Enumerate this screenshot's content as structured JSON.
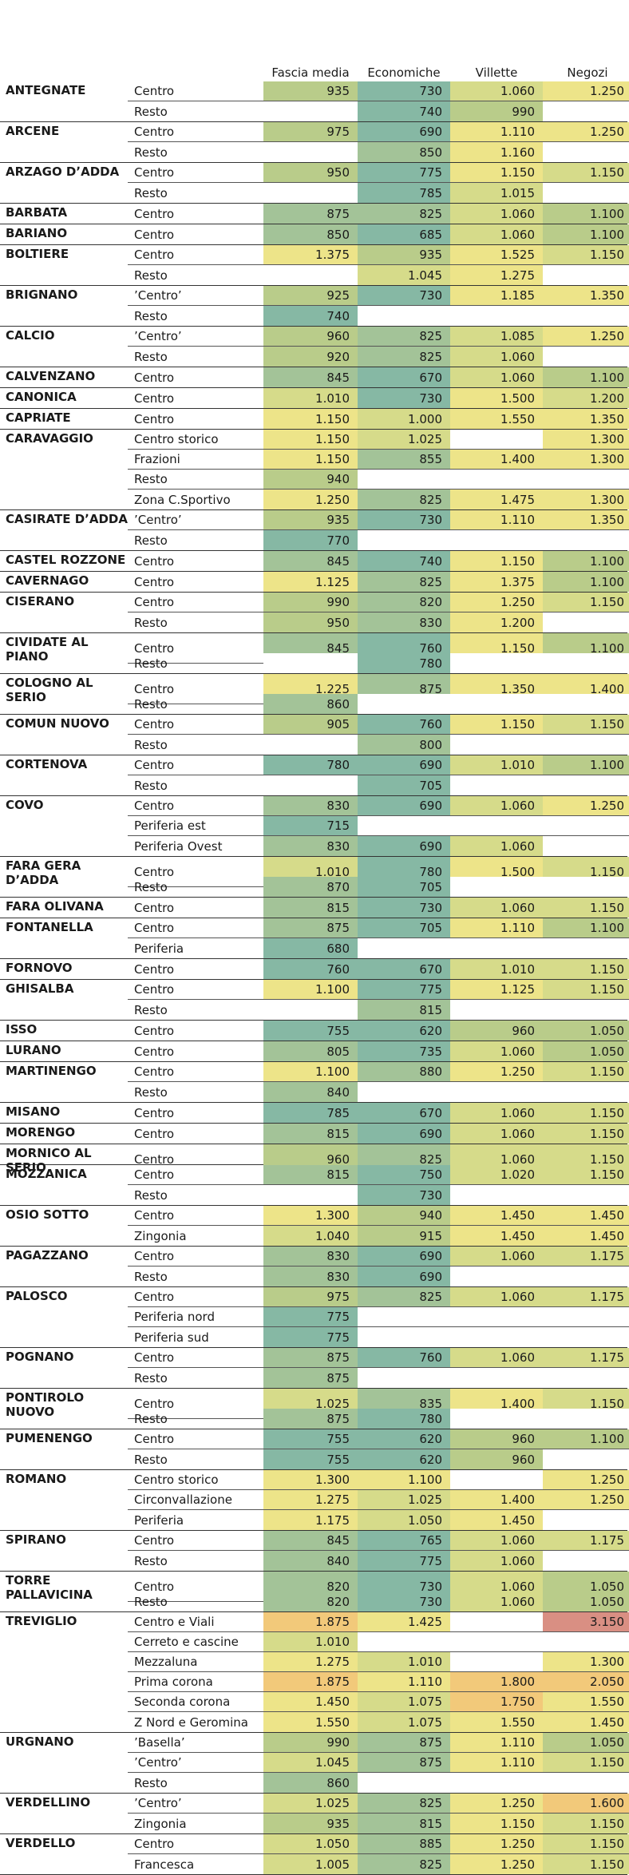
{
  "headers": {
    "fascia": "Fascia media",
    "econ": "Economiche",
    "villette": "Villette",
    "negozi": "Negozi"
  },
  "colors": {
    "low": "#86b8a4",
    "mid": "#b9cc8a",
    "high": "#ede489",
    "top": "#f2c97a",
    "max": "#d98f83"
  },
  "groups": [
    {
      "name": "ANTEGNATE",
      "rows": [
        [
          "Centro",
          "935",
          "730",
          "1.060",
          "1.250"
        ],
        [
          "Resto",
          "",
          "740",
          "990",
          ""
        ]
      ]
    },
    {
      "name": "ARCENE",
      "rows": [
        [
          "Centro",
          "975",
          "690",
          "1.110",
          "1.250"
        ],
        [
          "Resto",
          "",
          "850",
          "1.160",
          ""
        ]
      ]
    },
    {
      "name": "ARZAGO DʼADDA",
      "rows": [
        [
          "Centro",
          "950",
          "775",
          "1.150",
          "1.150"
        ],
        [
          "Resto",
          "",
          "785",
          "1.015",
          ""
        ]
      ]
    },
    {
      "name": "BARBATA",
      "rows": [
        [
          "Centro",
          "875",
          "825",
          "1.060",
          "1.100"
        ]
      ]
    },
    {
      "name": "BARIANO",
      "rows": [
        [
          "Centro",
          "850",
          "685",
          "1.060",
          "1.100"
        ]
      ]
    },
    {
      "name": "BOLTIERE",
      "rows": [
        [
          "Centro",
          "1.375",
          "935",
          "1.525",
          "1.150"
        ],
        [
          "Resto",
          "",
          "1.045",
          "1.275",
          ""
        ]
      ]
    },
    {
      "name": "BRIGNANO",
      "rows": [
        [
          "ʼCentroʼ",
          "925",
          "730",
          "1.185",
          "1.350"
        ],
        [
          "Resto",
          "740",
          "",
          "",
          ""
        ]
      ]
    },
    {
      "name": "CALCIO",
      "rows": [
        [
          "ʼCentroʼ",
          "960",
          "825",
          "1.085",
          "1.250"
        ],
        [
          "Resto",
          "920",
          "825",
          "1.060",
          ""
        ]
      ]
    },
    {
      "name": "CALVENZANO",
      "rows": [
        [
          "Centro",
          "845",
          "670",
          "1.060",
          "1.100"
        ]
      ]
    },
    {
      "name": "CANONICA",
      "rows": [
        [
          "Centro",
          "1.010",
          "730",
          "1.500",
          "1.200"
        ]
      ]
    },
    {
      "name": "CAPRIATE",
      "rows": [
        [
          "Centro",
          "1.150",
          "1.000",
          "1.550",
          "1.350"
        ]
      ]
    },
    {
      "name": "CARAVAGGIO",
      "rows": [
        [
          "Centro storico",
          "1.150",
          "1.025",
          "",
          "1.300"
        ],
        [
          "Frazioni",
          "1.150",
          "855",
          "1.400",
          "1.300"
        ],
        [
          "Resto",
          "940",
          "",
          "",
          ""
        ],
        [
          "Zona C.Sportivo",
          "1.250",
          "825",
          "1.475",
          "1.300"
        ]
      ]
    },
    {
      "name": "CASIRATE DʼADDA",
      "rows": [
        [
          "ʼCentroʼ",
          "935",
          "730",
          "1.110",
          "1.350"
        ],
        [
          "Resto",
          "770",
          "",
          "",
          ""
        ]
      ]
    },
    {
      "name": "CASTEL ROZZONE",
      "rows": [
        [
          "Centro",
          "845",
          "740",
          "1.150",
          "1.100"
        ]
      ]
    },
    {
      "name": "CAVERNAGO",
      "rows": [
        [
          "Centro",
          "1.125",
          "825",
          "1.375",
          "1.100"
        ]
      ]
    },
    {
      "name": "CISERANO",
      "rows": [
        [
          "Centro",
          "990",
          "820",
          "1.250",
          "1.150"
        ],
        [
          "Resto",
          "950",
          "830",
          "1.200",
          ""
        ]
      ]
    },
    {
      "name": "CIVIDATE AL PIANO",
      "rows": [
        [
          "Centro",
          "845",
          "760",
          "1.150",
          "1.100"
        ],
        [
          "Resto",
          "",
          "780",
          "",
          ""
        ]
      ]
    },
    {
      "name": "COLOGNO AL SERIO",
      "rows": [
        [
          "Centro",
          "1.225",
          "875",
          "1.350",
          "1.400"
        ],
        [
          "Resto",
          "860",
          "",
          "",
          ""
        ]
      ]
    },
    {
      "name": "COMUN NUOVO",
      "rows": [
        [
          "Centro",
          "905",
          "760",
          "1.150",
          "1.150"
        ],
        [
          "Resto",
          "",
          "800",
          "",
          ""
        ]
      ]
    },
    {
      "name": "CORTENOVA",
      "rows": [
        [
          "Centro",
          "780",
          "690",
          "1.010",
          "1.100"
        ],
        [
          "Resto",
          "",
          "705",
          "",
          ""
        ]
      ]
    },
    {
      "name": "COVO",
      "rows": [
        [
          "Centro",
          "830",
          "690",
          "1.060",
          "1.250"
        ],
        [
          "Periferia est",
          "715",
          "",
          "",
          ""
        ],
        [
          "Periferia Ovest",
          "830",
          "690",
          "1.060",
          ""
        ]
      ]
    },
    {
      "name": "FARA GERA DʼADDA",
      "rows": [
        [
          "Centro",
          "1.010",
          "780",
          "1.500",
          "1.150"
        ],
        [
          "Resto",
          "870",
          "705",
          "",
          ""
        ]
      ]
    },
    {
      "name": "FARA OLIVANA",
      "rows": [
        [
          "Centro",
          "815",
          "730",
          "1.060",
          "1.150"
        ]
      ]
    },
    {
      "name": "FONTANELLA",
      "rows": [
        [
          "Centro",
          "875",
          "705",
          "1.110",
          "1.100"
        ],
        [
          "Periferia",
          "680",
          "",
          "",
          ""
        ]
      ]
    },
    {
      "name": "FORNOVO",
      "rows": [
        [
          "Centro",
          "760",
          "670",
          "1.010",
          "1.150"
        ]
      ]
    },
    {
      "name": "GHISALBA",
      "rows": [
        [
          "Centro",
          "1.100",
          "775",
          "1.125",
          "1.150"
        ],
        [
          "Resto",
          "",
          "815",
          "",
          ""
        ]
      ]
    },
    {
      "name": "ISSO",
      "rows": [
        [
          "Centro",
          "755",
          "620",
          "960",
          "1.050"
        ]
      ]
    },
    {
      "name": "LURANO",
      "rows": [
        [
          "Centro",
          "805",
          "735",
          "1.060",
          "1.050"
        ]
      ]
    },
    {
      "name": "MARTINENGO",
      "rows": [
        [
          "Centro",
          "1.100",
          "880",
          "1.250",
          "1.150"
        ],
        [
          "Resto",
          "840",
          "",
          "",
          ""
        ]
      ]
    },
    {
      "name": "MISANO",
      "rows": [
        [
          "Centro",
          "785",
          "670",
          "1.060",
          "1.150"
        ]
      ]
    },
    {
      "name": "MORENGO",
      "rows": [
        [
          "Centro",
          "815",
          "690",
          "1.060",
          "1.150"
        ]
      ]
    },
    {
      "name": "MORNICO AL SERIO",
      "rows": [
        [
          "Centro",
          "960",
          "825",
          "1.060",
          "1.150"
        ]
      ]
    },
    {
      "name": "MOZZANICA",
      "rows": [
        [
          "Centro",
          "815",
          "750",
          "1.020",
          "1.150"
        ],
        [
          "Resto",
          "",
          "730",
          "",
          ""
        ]
      ]
    },
    {
      "name": "OSIO SOTTO",
      "rows": [
        [
          "Centro",
          "1.300",
          "940",
          "1.450",
          "1.450"
        ],
        [
          "Zingonia",
          "1.040",
          "915",
          "1.450",
          "1.450"
        ]
      ]
    },
    {
      "name": "PAGAZZANO",
      "rows": [
        [
          "Centro",
          "830",
          "690",
          "1.060",
          "1.175"
        ],
        [
          "Resto",
          "830",
          "690",
          "",
          ""
        ]
      ]
    },
    {
      "name": "PALOSCO",
      "rows": [
        [
          "Centro",
          "975",
          "825",
          "1.060",
          "1.175"
        ],
        [
          "Periferia nord",
          "775",
          "",
          "",
          ""
        ],
        [
          "Periferia sud",
          "775",
          "",
          "",
          ""
        ]
      ]
    },
    {
      "name": "POGNANO",
      "rows": [
        [
          "Centro",
          "875",
          "760",
          "1.060",
          "1.175"
        ],
        [
          "Resto",
          "875",
          "",
          "",
          ""
        ]
      ]
    },
    {
      "name": "PONTIROLO NUOVO",
      "rows": [
        [
          "Centro",
          "1.025",
          "835",
          "1.400",
          "1.150"
        ],
        [
          "Resto",
          "875",
          "780",
          "",
          ""
        ]
      ]
    },
    {
      "name": "PUMENENGO",
      "rows": [
        [
          "Centro",
          "755",
          "620",
          "960",
          "1.100"
        ],
        [
          "Resto",
          "755",
          "620",
          "960",
          ""
        ]
      ]
    },
    {
      "name": "ROMANO",
      "rows": [
        [
          "Centro storico",
          "1.300",
          "1.100",
          "",
          "1.250"
        ],
        [
          "Circonvallazione",
          "1.275",
          "1.025",
          "1.400",
          "1.250"
        ],
        [
          "Periferia",
          "1.175",
          "1.050",
          "1.450",
          ""
        ]
      ]
    },
    {
      "name": "SPIRANO",
      "rows": [
        [
          "Centro",
          "845",
          "765",
          "1.060",
          "1.175"
        ],
        [
          "Resto",
          "840",
          "775",
          "1.060",
          ""
        ]
      ]
    },
    {
      "name": "TORRE PALLAVICINA",
      "rows": [
        [
          "Centro",
          "820",
          "730",
          "1.060",
          "1.050"
        ],
        [
          "Resto",
          "820",
          "730",
          "1.060",
          "1.050"
        ]
      ]
    },
    {
      "name": "TREVIGLIO",
      "rows": [
        [
          "Centro  e Viali",
          "1.875",
          "1.425",
          "",
          "3.150"
        ],
        [
          "Cerreto e cascine",
          "1.010",
          "",
          "",
          ""
        ],
        [
          "Mezzaluna",
          "1.275",
          "1.010",
          "",
          "1.300"
        ],
        [
          "Prima corona",
          "1.875",
          "1.110",
          "1.800",
          "2.050"
        ],
        [
          "Seconda corona",
          "1.450",
          "1.075",
          "1.750",
          "1.550"
        ],
        [
          "Z Nord e Geromina",
          "1.550",
          "1.075",
          "1.550",
          "1.450"
        ]
      ]
    },
    {
      "name": "URGNANO",
      "rows": [
        [
          "ʼBasellaʼ",
          "990",
          "875",
          "1.110",
          "1.050"
        ],
        [
          "ʼCentroʼ",
          "1.045",
          "875",
          "1.110",
          "1.150"
        ],
        [
          "Resto",
          "860",
          "",
          "",
          ""
        ]
      ]
    },
    {
      "name": "VERDELLINO",
      "rows": [
        [
          "ʼCentroʼ",
          "1.025",
          "825",
          "1.250",
          "1.600"
        ],
        [
          "Zingonia",
          "935",
          "815",
          "1.150",
          "1.150"
        ]
      ]
    },
    {
      "name": "VERDELLO",
      "rows": [
        [
          "Centro",
          "1.050",
          "885",
          "1.250",
          "1.150"
        ],
        [
          "Francesca",
          "1.005",
          "825",
          "1.250",
          "1.150"
        ]
      ]
    }
  ]
}
